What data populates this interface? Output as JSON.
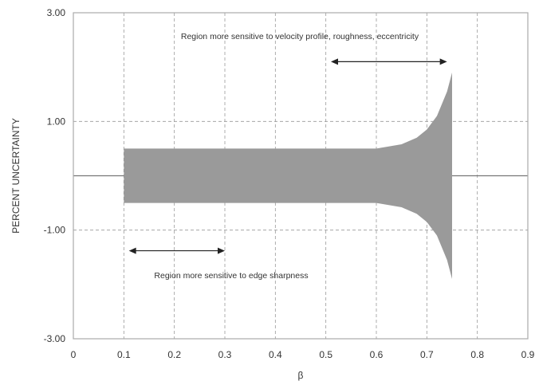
{
  "chart_data": {
    "type": "area",
    "xlabel": "β",
    "ylabel": "PERCENT UNCERTAINTY",
    "xlim": [
      0,
      0.9
    ],
    "ylim": [
      -3.0,
      3.0
    ],
    "x_ticks": [
      "0",
      "0.1",
      "0.2",
      "0.3",
      "0.4",
      "0.5",
      "0.6",
      "0.7",
      "0.8",
      "0.9"
    ],
    "y_ticks": [
      "3.00",
      "1.00",
      "-1.00",
      "-3.00"
    ],
    "y_tick_values": [
      3.0,
      1.0,
      -1.0,
      -3.0
    ],
    "grid": true,
    "reference_line": 0,
    "series": [
      {
        "x": [
          0.1,
          0.2,
          0.3,
          0.4,
          0.5,
          0.6,
          0.65,
          0.68,
          0.7,
          0.72,
          0.74,
          0.75
        ],
        "upper": [
          0.5,
          0.5,
          0.5,
          0.5,
          0.5,
          0.5,
          0.58,
          0.7,
          0.85,
          1.1,
          1.55,
          1.9
        ],
        "lower": [
          -0.5,
          -0.5,
          -0.5,
          -0.5,
          -0.5,
          -0.5,
          -0.58,
          -0.7,
          -0.85,
          -1.1,
          -1.55,
          -1.9
        ]
      }
    ],
    "annotations": [
      {
        "text": "Region more sensitive to velocity profile, roughness, eccentricity",
        "x_start": 0.51,
        "x_end": 0.74,
        "y": 2.1
      },
      {
        "text": "Region more sensitive to edge sharpness",
        "x_start": 0.11,
        "x_end": 0.3,
        "y": -1.38
      }
    ],
    "colors": {
      "band": "#9a9a9a",
      "grid": "#999999",
      "axis": "#aaaaaa",
      "text": "#333333"
    }
  }
}
